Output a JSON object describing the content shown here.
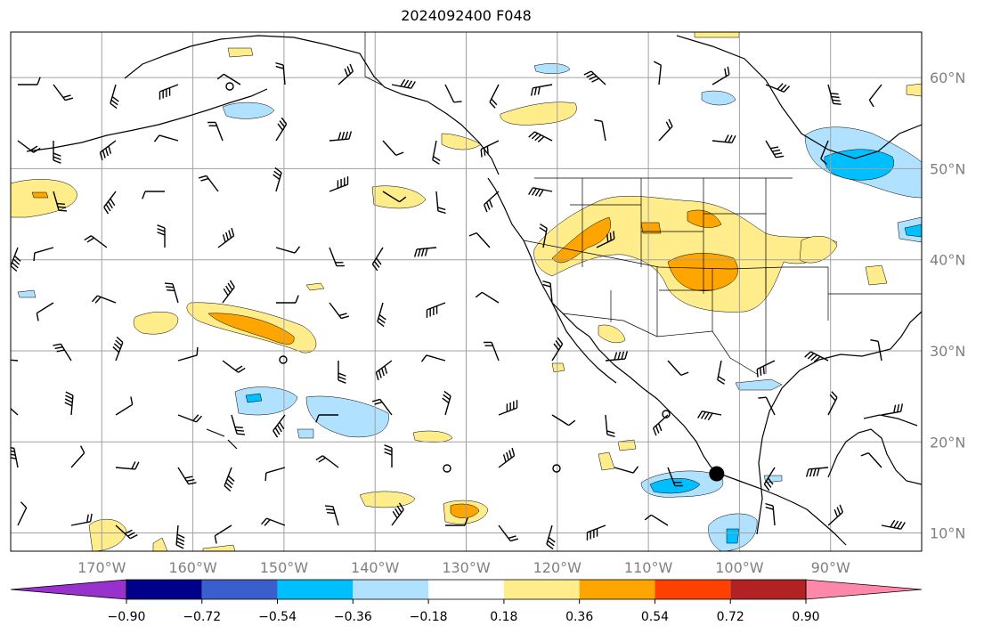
{
  "title": "2024092400 F048",
  "map": {
    "lon_range": [
      -180,
      -80
    ],
    "lat_range": [
      8,
      65
    ],
    "lat_ticks": [
      {
        "value": 10,
        "label": "10°N"
      },
      {
        "value": 20,
        "label": "20°N"
      },
      {
        "value": 30,
        "label": "30°N"
      },
      {
        "value": 40,
        "label": "40°N"
      },
      {
        "value": 50,
        "label": "50°N"
      },
      {
        "value": 60,
        "label": "60°N"
      }
    ],
    "lon_ticks": [
      {
        "value": -170,
        "label": "170°W"
      },
      {
        "value": -160,
        "label": "160°W"
      },
      {
        "value": -150,
        "label": "150°W"
      },
      {
        "value": -140,
        "label": "140°W"
      },
      {
        "value": -130,
        "label": "130°W"
      },
      {
        "value": -120,
        "label": "120°W"
      },
      {
        "value": -110,
        "label": "110°W"
      },
      {
        "value": -100,
        "label": "100°W"
      },
      {
        "value": -90,
        "label": "90°W"
      }
    ],
    "gridlines": true,
    "storm_marker": {
      "lon": -102.5,
      "lat": 16.5
    }
  },
  "colorbar": {
    "colors": [
      "#9932cc",
      "#00008b",
      "#3a5fcd",
      "#00bfff",
      "#b0e2ff",
      "#ffffff",
      "#ffec8b",
      "#ffa500",
      "#ff4000",
      "#b22222",
      "#ff88aa"
    ],
    "tick_labels": [
      "−0.90",
      "−0.72",
      "−0.54",
      "−0.36",
      "−0.18",
      "0.18",
      "0.36",
      "0.54",
      "0.72",
      "0.90"
    ]
  },
  "colors": {
    "land_line": "#000000",
    "grid": "#a0a0a0",
    "pos1": "#ffec8b",
    "pos2": "#ffa500",
    "neg1": "#b0e2ff",
    "neg2": "#00bfff"
  }
}
